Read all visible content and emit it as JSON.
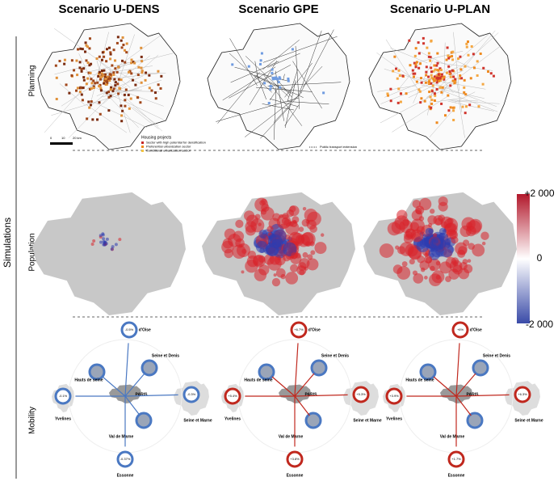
{
  "columns": [
    "Scenario U-DENS",
    "Scenario GPE",
    "Scenario U-PLAN"
  ],
  "section_label": "Simulations",
  "rows": [
    "Planning",
    "Population",
    "Mobility"
  ],
  "planning_legend": {
    "title": "Housing projects",
    "items": [
      {
        "label": "Sector with high potential for densification",
        "color": "#c62828"
      },
      {
        "label": "Preferential urbanization sector",
        "color": "#ef8a1f"
      },
      {
        "label": "Conditional urbanization sector",
        "color": "#f4c542"
      }
    ]
  },
  "scale_bar": [
    "0",
    "10",
    "20 km"
  ],
  "gpe_legend": "Public transport extension",
  "colorbar": {
    "top": "+2 000",
    "middle": "0",
    "bottom": "-2 000"
  },
  "mobility": {
    "departments": [
      "Val d'Oise",
      "Seine et Denis",
      "Hauts de seine",
      "PARIS",
      "Val de Marne",
      "Essonne",
      "Yvelines",
      "Seine et Marne"
    ],
    "panels": [
      {
        "changes": [
          {
            "department": "Val d'Oise",
            "label": "-0.5%",
            "color": "#4a78c2"
          },
          {
            "department": "Essonne",
            "label": "-0.37%",
            "color": "#4a78c2"
          },
          {
            "department": "Yvelines",
            "label": "-0.1%",
            "color": "#4a78c2"
          },
          {
            "department": "Seine et Marne",
            "label": "-0.3%",
            "color": "#4a78c2"
          }
        ]
      },
      {
        "changes": [
          {
            "department": "Val d'Oise",
            "label": "+6.7%",
            "color": "#c0281e"
          },
          {
            "department": "Essonne",
            "label": "+3.8%",
            "color": "#c0281e"
          },
          {
            "department": "Yvelines",
            "label": "+5.4%",
            "color": "#c0281e"
          },
          {
            "department": "Seine et Marne",
            "label": "+5.3%",
            "color": "#c0281e"
          }
        ]
      },
      {
        "changes": [
          {
            "department": "Val d'Oise",
            "label": "+6%",
            "color": "#c0281e"
          },
          {
            "department": "Essonne",
            "label": "+1.7%",
            "color": "#c0281e"
          },
          {
            "department": "Yvelines",
            "label": "+3.9%",
            "color": "#c0281e"
          },
          {
            "department": "Seine et Marne",
            "label": "+6.3%",
            "color": "#c0281e"
          }
        ]
      }
    ]
  }
}
